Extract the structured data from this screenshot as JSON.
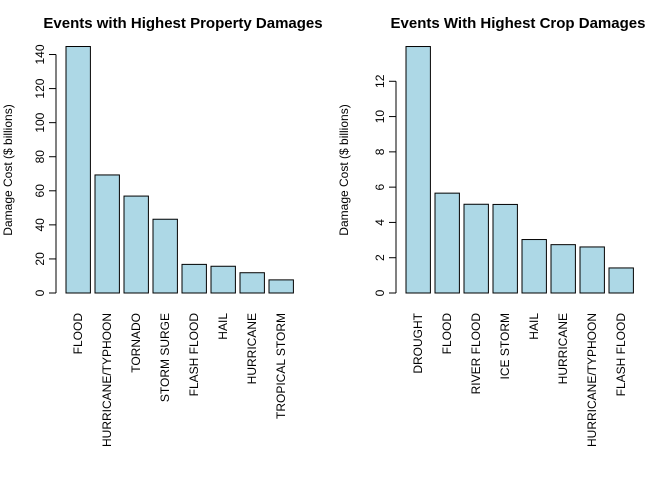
{
  "chart_data": [
    {
      "type": "bar",
      "title": "Events with Highest Property Damages",
      "xlabel": "",
      "ylabel": "Damage Cost ($ billions)",
      "ylim": [
        0,
        145
      ],
      "yticks": [
        0,
        20,
        40,
        60,
        80,
        100,
        120,
        140
      ],
      "bar_color": "#add8e6",
      "categories": [
        "FLOOD",
        "HURRICANE/TYPHOON",
        "TORNADO",
        "STORM SURGE",
        "FLASH FLOOD",
        "HAIL",
        "HURRICANE",
        "TROPICAL STORM"
      ],
      "values": [
        144.7,
        69.3,
        56.9,
        43.3,
        16.8,
        15.7,
        11.9,
        7.7
      ]
    },
    {
      "type": "bar",
      "title": "Events With Highest Crop Damages",
      "xlabel": "",
      "ylabel": "Damage Cost ($ billions)",
      "ylim": [
        0,
        14
      ],
      "yticks": [
        0,
        2,
        4,
        6,
        8,
        10,
        12
      ],
      "bar_color": "#add8e6",
      "categories": [
        "DROUGHT",
        "FLOOD",
        "RIVER FLOOD",
        "ICE STORM",
        "HAIL",
        "HURRICANE",
        "HURRICANE/TYPHOON",
        "FLASH FLOOD"
      ],
      "values": [
        13.97,
        5.66,
        5.03,
        5.02,
        3.03,
        2.74,
        2.61,
        1.42
      ]
    }
  ]
}
